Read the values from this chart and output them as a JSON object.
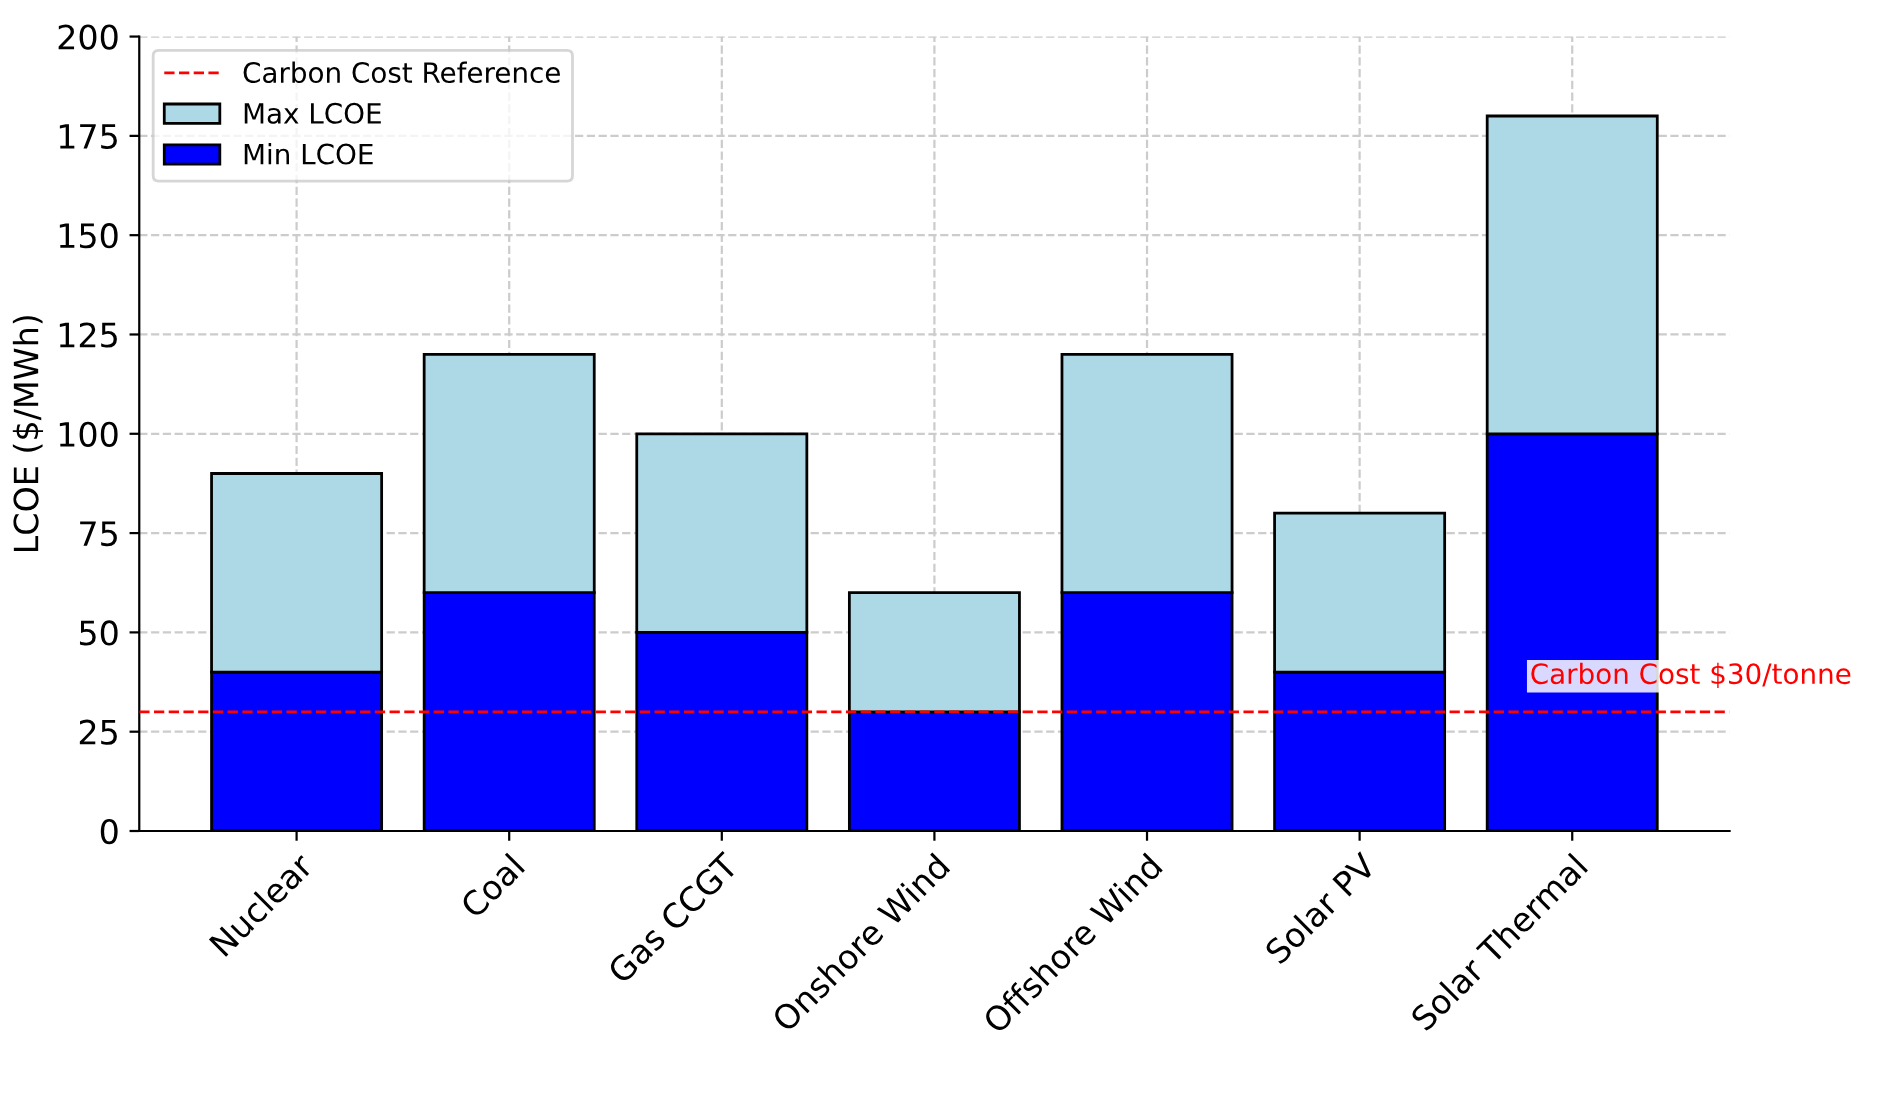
{
  "chart_data": {
    "type": "bar",
    "stacked": true,
    "ylabel": "LCOE ($/MWh)",
    "categories": [
      "Nuclear",
      "Coal",
      "Gas CCGT",
      "Onshore Wind",
      "Offshore Wind",
      "Solar PV",
      "Solar Thermal"
    ],
    "series": [
      {
        "name": "Min LCOE",
        "color": "#0000ff",
        "values": [
          40,
          60,
          50,
          30,
          60,
          40,
          100
        ]
      },
      {
        "name": "Max LCOE",
        "color": "#add8e6",
        "values": [
          50,
          60,
          50,
          30,
          60,
          40,
          80
        ]
      }
    ],
    "ylim": [
      0,
      200
    ],
    "yticks": [
      0,
      25,
      50,
      75,
      100,
      125,
      150,
      175,
      200
    ],
    "grid": true,
    "legend": "top left",
    "ref_lines": [
      {
        "axis": "y",
        "value": 30,
        "label": "Carbon Cost Reference",
        "color": "#ff0000",
        "line_style": "dashed"
      }
    ],
    "annotations": [
      {
        "text": "Carbon Cost $30/tonne",
        "y": 30
      }
    ]
  }
}
